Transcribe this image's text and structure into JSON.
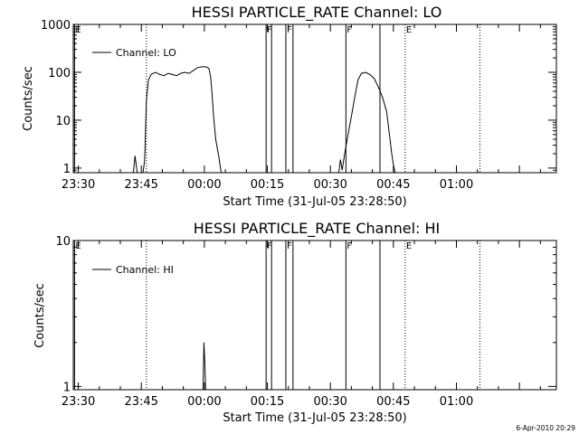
{
  "chart_data": [
    {
      "type": "line",
      "title": "HESSI PARTICLE_RATE Channel: LO",
      "xlabel": "Start Time (31-Jul-05 23:28:50)",
      "ylabel": "Counts/sec",
      "x_unit": "minutes since 23:28:50",
      "xlim": [
        0,
        115
      ],
      "ylim": [
        0.8,
        1000
      ],
      "y_scale": "log",
      "x_tick_labels": [
        {
          "x": 1.2,
          "label": "23:30"
        },
        {
          "x": 16.2,
          "label": "23:45"
        },
        {
          "x": 31.2,
          "label": "00:00"
        },
        {
          "x": 46.2,
          "label": "00:15"
        },
        {
          "x": 61.2,
          "label": "00:30"
        },
        {
          "x": 76.2,
          "label": "00:45"
        },
        {
          "x": 91.2,
          "label": "01:00"
        }
      ],
      "y_tick_labels": [
        {
          "y": 1,
          "label": "1"
        },
        {
          "y": 10,
          "label": "10"
        },
        {
          "y": 100,
          "label": "100"
        },
        {
          "y": 1000,
          "label": "1000"
        }
      ],
      "legend": {
        "position": "top-left",
        "entries": [
          "Channel: LO"
        ]
      },
      "vertical_markers": [
        {
          "x": 0.3,
          "style": "solid",
          "label": "E"
        },
        {
          "x": 17.4,
          "style": "dotted",
          "label": ""
        },
        {
          "x": 45.9,
          "style": "solid",
          "label": "F"
        },
        {
          "x": 47.2,
          "style": "solid",
          "label": ""
        },
        {
          "x": 50.6,
          "style": "solid",
          "label": "F"
        },
        {
          "x": 52.3,
          "style": "solid",
          "label": ""
        },
        {
          "x": 64.9,
          "style": "solid",
          "label": "F"
        },
        {
          "x": 73.0,
          "style": "solid",
          "label": ""
        },
        {
          "x": 79.0,
          "style": "dotted",
          "label": "E"
        },
        {
          "x": 96.8,
          "style": "dotted",
          "label": ""
        }
      ],
      "series": [
        {
          "name": "Channel: LO",
          "segments": [
            [
              [
                14.3,
                0.8
              ],
              [
                14.7,
                1.8
              ],
              [
                15.2,
                0.8
              ]
            ],
            [
              [
                16.6,
                0.8
              ],
              [
                17.0,
                1.5
              ],
              [
                17.4,
                25
              ],
              [
                17.9,
                70
              ],
              [
                18.6,
                92
              ],
              [
                19.6,
                100
              ],
              [
                20.6,
                90
              ],
              [
                21.6,
                85
              ],
              [
                22.6,
                95
              ],
              [
                23.6,
                90
              ],
              [
                24.6,
                85
              ],
              [
                25.6,
                95
              ],
              [
                26.6,
                100
              ],
              [
                27.6,
                95
              ],
              [
                28.6,
                110
              ],
              [
                29.6,
                125
              ],
              [
                30.6,
                130
              ],
              [
                31.6,
                130
              ],
              [
                32.3,
                120
              ],
              [
                32.7,
                80
              ],
              [
                33.0,
                40
              ],
              [
                33.4,
                12
              ],
              [
                33.9,
                4
              ],
              [
                34.6,
                1.8
              ],
              [
                35.2,
                0.8
              ]
            ],
            [
              [
                63.2,
                0.8
              ],
              [
                63.6,
                1.5
              ],
              [
                64.0,
                0.9
              ],
              [
                64.6,
                2
              ],
              [
                65.4,
                5
              ],
              [
                66.2,
                12
              ],
              [
                67.0,
                30
              ],
              [
                67.8,
                70
              ],
              [
                68.6,
                95
              ],
              [
                69.6,
                100
              ],
              [
                70.6,
                90
              ],
              [
                71.6,
                75
              ],
              [
                72.6,
                50
              ],
              [
                73.6,
                30
              ],
              [
                74.6,
                15
              ],
              [
                75.4,
                4
              ],
              [
                75.8,
                2
              ],
              [
                76.2,
                1.2
              ],
              [
                76.6,
                0.8
              ]
            ]
          ]
        }
      ]
    },
    {
      "type": "line",
      "title": "HESSI PARTICLE_RATE Channel: HI",
      "xlabel": "Start Time (31-Jul-05 23:28:50)",
      "ylabel": "Counts/sec",
      "x_unit": "minutes since 23:28:50",
      "xlim": [
        0,
        115
      ],
      "ylim": [
        0.95,
        10
      ],
      "y_scale": "log",
      "x_tick_labels": [
        {
          "x": 1.2,
          "label": "23:30"
        },
        {
          "x": 16.2,
          "label": "23:45"
        },
        {
          "x": 31.2,
          "label": "00:00"
        },
        {
          "x": 46.2,
          "label": "00:15"
        },
        {
          "x": 61.2,
          "label": "00:30"
        },
        {
          "x": 76.2,
          "label": "00:45"
        },
        {
          "x": 91.2,
          "label": "01:00"
        }
      ],
      "y_tick_labels": [
        {
          "y": 1,
          "label": "1"
        },
        {
          "y": 10,
          "label": "10"
        }
      ],
      "legend": {
        "position": "top-left",
        "entries": [
          "Channel: HI"
        ]
      },
      "vertical_markers": [
        {
          "x": 0.3,
          "style": "solid",
          "label": "E"
        },
        {
          "x": 17.4,
          "style": "dotted",
          "label": ""
        },
        {
          "x": 45.9,
          "style": "solid",
          "label": "F"
        },
        {
          "x": 47.2,
          "style": "solid",
          "label": ""
        },
        {
          "x": 50.6,
          "style": "solid",
          "label": "F"
        },
        {
          "x": 52.3,
          "style": "solid",
          "label": ""
        },
        {
          "x": 64.9,
          "style": "solid",
          "label": "F"
        },
        {
          "x": 73.0,
          "style": "solid",
          "label": ""
        },
        {
          "x": 79.0,
          "style": "dotted",
          "label": "E"
        },
        {
          "x": 96.8,
          "style": "dotted",
          "label": ""
        }
      ],
      "series": [
        {
          "name": "Channel: HI",
          "segments": [
            [
              [
                30.9,
                0.95
              ],
              [
                31.1,
                2.0
              ],
              [
                31.3,
                1.5
              ],
              [
                31.5,
                0.95
              ]
            ]
          ]
        }
      ]
    }
  ],
  "footer_date": "6-Apr-2010 20:29"
}
